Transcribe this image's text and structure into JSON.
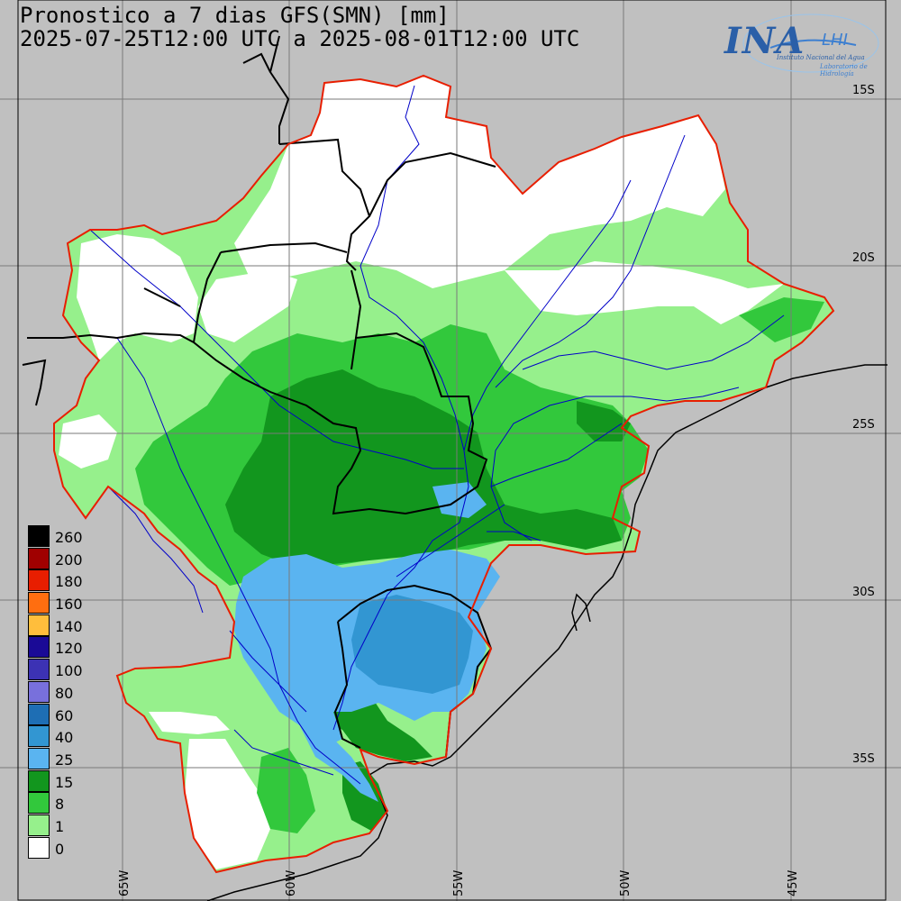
{
  "title": {
    "line1": "Pronostico a 7 dias GFS(SMN) [mm]",
    "line2": "2025-07-25T12:00 UTC a 2025-08-01T12:00 UTC"
  },
  "logo": {
    "name": "INA",
    "lab": "LHI",
    "subtitle1": "Instituto Nacional del Agua",
    "subtitle2": "Laboratorio de Hidrología"
  },
  "latitude_labels": [
    "15S",
    "20S",
    "25S",
    "30S",
    "35S"
  ],
  "longitude_labels": [
    "65W",
    "60W",
    "55W",
    "50W",
    "45W"
  ],
  "legend": {
    "unit": "mm",
    "items": [
      {
        "label": "260",
        "color": "#000000"
      },
      {
        "label": "200",
        "color": "#a00000"
      },
      {
        "label": "180",
        "color": "#e81e00"
      },
      {
        "label": "160",
        "color": "#ff6e10"
      },
      {
        "label": "140",
        "color": "#ffbe3c"
      },
      {
        "label": "120",
        "color": "#1a0a96"
      },
      {
        "label": "100",
        "color": "#3c32b4"
      },
      {
        "label": "80",
        "color": "#7870dc"
      },
      {
        "label": "60",
        "color": "#1e6eb4"
      },
      {
        "label": "40",
        "color": "#3296d2"
      },
      {
        "label": "25",
        "color": "#5ab4f0"
      },
      {
        "label": "15",
        "color": "#12961e"
      },
      {
        "label": "8",
        "color": "#32c83c"
      },
      {
        "label": "1",
        "color": "#96f08c"
      },
      {
        "label": "0",
        "color": "#ffffff"
      }
    ]
  },
  "colors": {
    "background": "#c0c0c0",
    "basin_outline": "#e81e00",
    "rivers": "#0000c8",
    "borders": "#000000",
    "graticule": "#7a7a7a"
  }
}
